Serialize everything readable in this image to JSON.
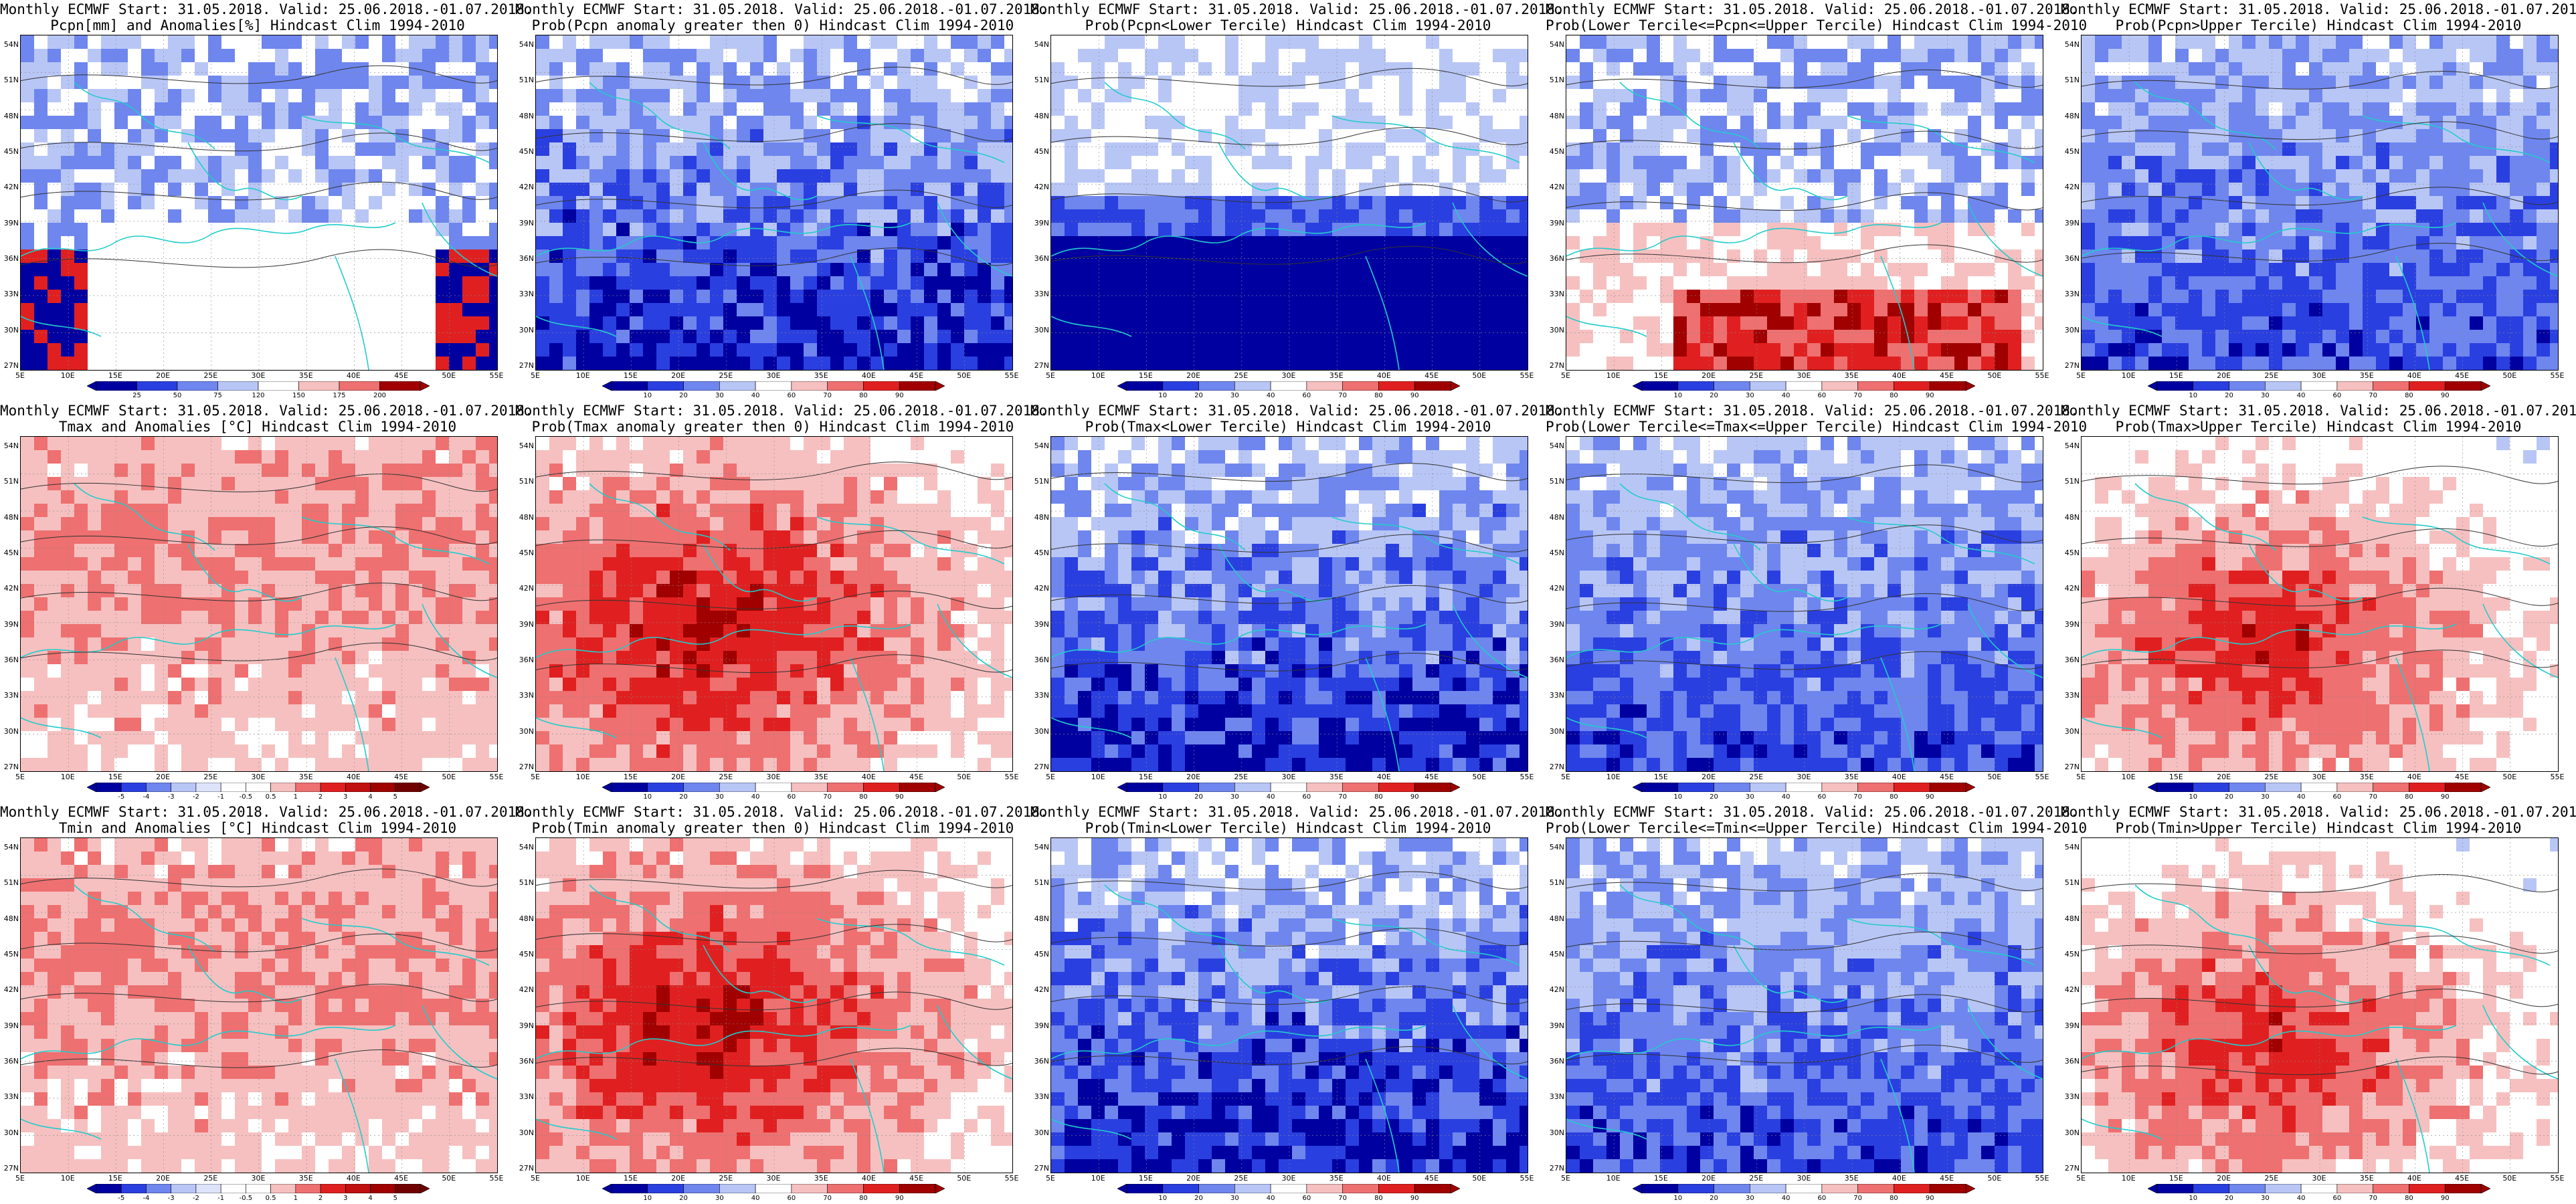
{
  "title_line1": "Monthly ECMWF Start: 31.05.2018. Valid: 25.06.2018.-01.07.2018.",
  "lat_labels": [
    "54N",
    "51N",
    "48N",
    "45N",
    "42N",
    "39N",
    "36N",
    "33N",
    "30N",
    "27N"
  ],
  "lon_labels": [
    "5E",
    "10E",
    "15E",
    "20E",
    "25E",
    "30E",
    "35E",
    "40E",
    "45E",
    "50E",
    "55E"
  ],
  "colorbars": {
    "pcpn": [
      "25",
      "50",
      "75",
      "120",
      "150",
      "175",
      "200"
    ],
    "prob": [
      "10",
      "20",
      "30",
      "40",
      "60",
      "70",
      "80",
      "90"
    ],
    "temp": [
      "-5",
      "-4",
      "-3",
      "-2",
      "-1",
      "-0.5",
      "0.5",
      "1",
      "2",
      "3",
      "4",
      "5"
    ]
  },
  "colors": {
    "dark_blue": "#0000a0",
    "blue": "#2a3fe0",
    "mid_blue": "#6e86ee",
    "light_blue": "#b8c6f6",
    "white": "#ffffff",
    "light_red": "#f6c0c0",
    "mid_red": "#ee7070",
    "red": "#e02020",
    "dark_red": "#a00000",
    "coast": "#22cccc"
  },
  "panels": [
    {
      "id": "pcpn-anom",
      "line2": "Pcpn[mm] and Anomalies[%] Hindcast Clim 1994-2010",
      "scheme": "pcpn",
      "cbar": "pcpn"
    },
    {
      "id": "pcpn-prob-pos",
      "line2": "Prob(Pcpn anomaly greater then 0) Hindcast Clim 1994-2010",
      "scheme": "blue-deep",
      "cbar": "prob"
    },
    {
      "id": "pcpn-prob-lower",
      "line2": "Prob(Pcpn<Lower Tercile) Hindcast Clim 1994-2010",
      "scheme": "blue-south",
      "cbar": "prob"
    },
    {
      "id": "pcpn-prob-mid",
      "line2": "Prob(Lower Tercile<=Pcpn<=Upper Tercile) Hindcast Clim 1994-2010",
      "scheme": "blue-red-south",
      "cbar": "prob"
    },
    {
      "id": "pcpn-prob-upper",
      "line2": "Prob(Pcpn>Upper Tercile) Hindcast Clim 1994-2010",
      "scheme": "blue-mixed",
      "cbar": "prob"
    },
    {
      "id": "tmax-anom",
      "line2": "Tmax and Anomalies [°C] Hindcast Clim 1994-2010",
      "scheme": "red-light",
      "cbar": "temp"
    },
    {
      "id": "tmax-prob-pos",
      "line2": "Prob(Tmax anomaly greater then 0) Hindcast Clim 1994-2010",
      "scheme": "red-strong",
      "cbar": "prob"
    },
    {
      "id": "tmax-prob-lower",
      "line2": "Prob(Tmax<Lower Tercile) Hindcast Clim 1994-2010",
      "scheme": "blue-deep",
      "cbar": "prob"
    },
    {
      "id": "tmax-prob-mid",
      "line2": "Prob(Lower Tercile<=Tmax<=Upper Tercile) Hindcast Clim 1994-2010",
      "scheme": "blue-mixed",
      "cbar": "prob"
    },
    {
      "id": "tmax-prob-upper",
      "line2": "Prob(Tmax>Upper Tercile) Hindcast Clim 1994-2010",
      "scheme": "red-mixed",
      "cbar": "prob"
    },
    {
      "id": "tmin-anom",
      "line2": "Tmin and Anomalies [°C] Hindcast Clim 1994-2010",
      "scheme": "red-light",
      "cbar": "temp"
    },
    {
      "id": "tmin-prob-pos",
      "line2": "Prob(Tmin anomaly greater then 0) Hindcast Clim 1994-2010",
      "scheme": "red-strong",
      "cbar": "prob"
    },
    {
      "id": "tmin-prob-lower",
      "line2": "Prob(Tmin<Lower Tercile) Hindcast Clim 1994-2010",
      "scheme": "blue-deep",
      "cbar": "prob"
    },
    {
      "id": "tmin-prob-mid",
      "line2": "Prob(Lower Tercile<=Tmin<=Upper Tercile) Hindcast Clim 1994-2010",
      "scheme": "blue-mixed",
      "cbar": "prob"
    },
    {
      "id": "tmin-prob-upper",
      "line2": "Prob(Tmin>Upper Tercile) Hindcast Clim 1994-2010",
      "scheme": "red-mixed",
      "cbar": "prob"
    }
  ]
}
